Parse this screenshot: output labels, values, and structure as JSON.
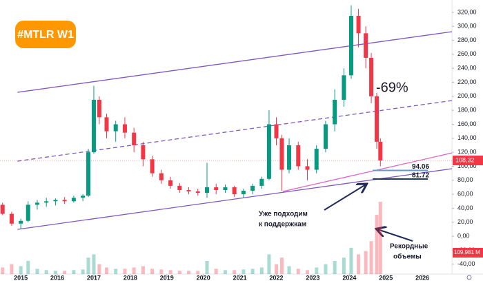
{
  "chart_data": {
    "type": "candlestick",
    "badge": "#MTLR W1",
    "x": [
      2014.5,
      2014.75,
      2015.0,
      2015.2,
      2015.45,
      2015.7,
      2015.95,
      2016.2,
      2016.45,
      2016.7,
      2016.85,
      2017.0,
      2017.15,
      2017.35,
      2017.6,
      2017.85,
      2018.1,
      2018.35,
      2018.6,
      2018.85,
      2019.1,
      2019.35,
      2019.6,
      2019.85,
      2020.1,
      2020.35,
      2020.6,
      2020.85,
      2021.1,
      2021.35,
      2021.6,
      2021.8,
      2022.0,
      2022.15,
      2022.35,
      2022.6,
      2022.85,
      2023.1,
      2023.35,
      2023.6,
      2023.85,
      2024.05,
      2024.25,
      2024.45,
      2024.6,
      2024.75,
      2024.85
    ],
    "open": [
      45,
      32,
      18,
      22,
      45,
      48,
      50,
      52,
      50,
      55,
      58,
      120,
      195,
      170,
      150,
      160,
      148,
      130,
      110,
      90,
      80,
      72,
      66,
      64,
      62,
      70,
      66,
      70,
      60,
      65,
      72,
      82,
      160,
      140,
      95,
      130,
      100,
      95,
      125,
      160,
      195,
      230,
      315,
      290,
      255,
      200,
      135
    ],
    "high": [
      48,
      35,
      25,
      50,
      52,
      55,
      54,
      56,
      58,
      60,
      125,
      215,
      200,
      175,
      165,
      170,
      155,
      135,
      115,
      95,
      85,
      76,
      70,
      68,
      105,
      75,
      74,
      72,
      68,
      75,
      85,
      180,
      170,
      145,
      140,
      135,
      110,
      130,
      165,
      210,
      240,
      330,
      325,
      300,
      262,
      205,
      140
    ],
    "low": [
      30,
      15,
      10,
      20,
      38,
      42,
      44,
      46,
      48,
      50,
      56,
      118,
      160,
      140,
      135,
      140,
      120,
      100,
      85,
      75,
      68,
      62,
      60,
      58,
      55,
      60,
      62,
      56,
      55,
      60,
      68,
      80,
      130,
      65,
      90,
      95,
      80,
      90,
      120,
      150,
      185,
      225,
      270,
      240,
      190,
      125,
      100
    ],
    "close": [
      32,
      18,
      22,
      45,
      48,
      50,
      52,
      50,
      55,
      58,
      120,
      195,
      170,
      150,
      160,
      148,
      130,
      110,
      90,
      80,
      72,
      66,
      64,
      62,
      70,
      66,
      70,
      60,
      65,
      72,
      82,
      160,
      140,
      95,
      130,
      100,
      95,
      125,
      160,
      195,
      230,
      315,
      290,
      255,
      200,
      135,
      108.32
    ],
    "volume": [
      10,
      15,
      12,
      20,
      8,
      6,
      5,
      5,
      6,
      7,
      25,
      30,
      15,
      10,
      8,
      8,
      10,
      12,
      8,
      7,
      6,
      5,
      5,
      5,
      20,
      8,
      6,
      6,
      7,
      8,
      10,
      30,
      15,
      25,
      12,
      8,
      6,
      10,
      15,
      20,
      25,
      40,
      30,
      35,
      50,
      90,
      109.981
    ],
    "up_color": "#089981",
    "down_color": "#f23645",
    "xlim": [
      2014.43,
      2026.81
    ],
    "ylim": [
      -56,
      337.6
    ],
    "volume_lim": [
      0,
      110
    ],
    "xticks": [
      2015,
      2016,
      2017,
      2018,
      2019,
      2020,
      2021,
      2022,
      2023,
      2024,
      2025,
      2026
    ],
    "yticks": [
      {
        "value": -40,
        "label": "-40,00"
      },
      {
        "value": -20,
        "label": "-20,00"
      },
      {
        "value": 0,
        "label": "0,00"
      },
      {
        "value": 20,
        "label": "20,00"
      },
      {
        "value": 40,
        "label": "40,00"
      },
      {
        "value": 60,
        "label": "60,00"
      },
      {
        "value": 80,
        "label": "80,00"
      },
      {
        "value": 100,
        "label": "100,00"
      },
      {
        "value": 120,
        "label": "120,00"
      },
      {
        "value": 140,
        "label": "140,00"
      },
      {
        "value": 160,
        "label": "160,00"
      },
      {
        "value": 180,
        "label": "180,00"
      },
      {
        "value": 200,
        "label": "200,00"
      },
      {
        "value": 220,
        "label": "220,00"
      },
      {
        "value": 240,
        "label": "240,00"
      },
      {
        "value": 260,
        "label": "260,00"
      },
      {
        "value": 280,
        "label": "280,00"
      },
      {
        "value": 300,
        "label": "300,00"
      },
      {
        "value": 320,
        "label": "320,00"
      }
    ],
    "trendlines": [
      {
        "x": [
          2014.91,
          2026.81
        ],
        "y": [
          205.7,
          292.3
        ],
        "color": "#7e57c2",
        "dashed": false
      },
      {
        "x": [
          2014.91,
          2026.81
        ],
        "y": [
          107.3,
          193.9
        ],
        "color": "#7e57c2",
        "dashed": true
      },
      {
        "x": [
          2014.91,
          2026.81
        ],
        "y": [
          9.8,
          96.5
        ],
        "color": "#7e57c2",
        "dashed": false
      },
      {
        "x": [
          2022.18,
          2026.81
        ],
        "y": [
          64,
          119
        ],
        "color": "#d966c8",
        "dashed": false
      }
    ],
    "levels": [
      {
        "value": 94.06,
        "x": [
          2024.64,
          2026.15
        ],
        "color": "#5b9bd5"
      },
      {
        "value": 81.72,
        "x": [
          2024.64,
          2026.15
        ],
        "color": "#1f3864"
      }
    ],
    "annotations": [
      {
        "text": [
          "-69%"
        ]
      },
      {
        "text": [
          "Уже подходим",
          "к поддержкам"
        ]
      },
      {
        "text": [
          "Рекордные",
          "объемы"
        ]
      }
    ],
    "last_price": {
      "value": 108.32,
      "label": "108,32"
    },
    "last_volume": {
      "value": 109.981,
      "label": "109,981 M"
    }
  }
}
